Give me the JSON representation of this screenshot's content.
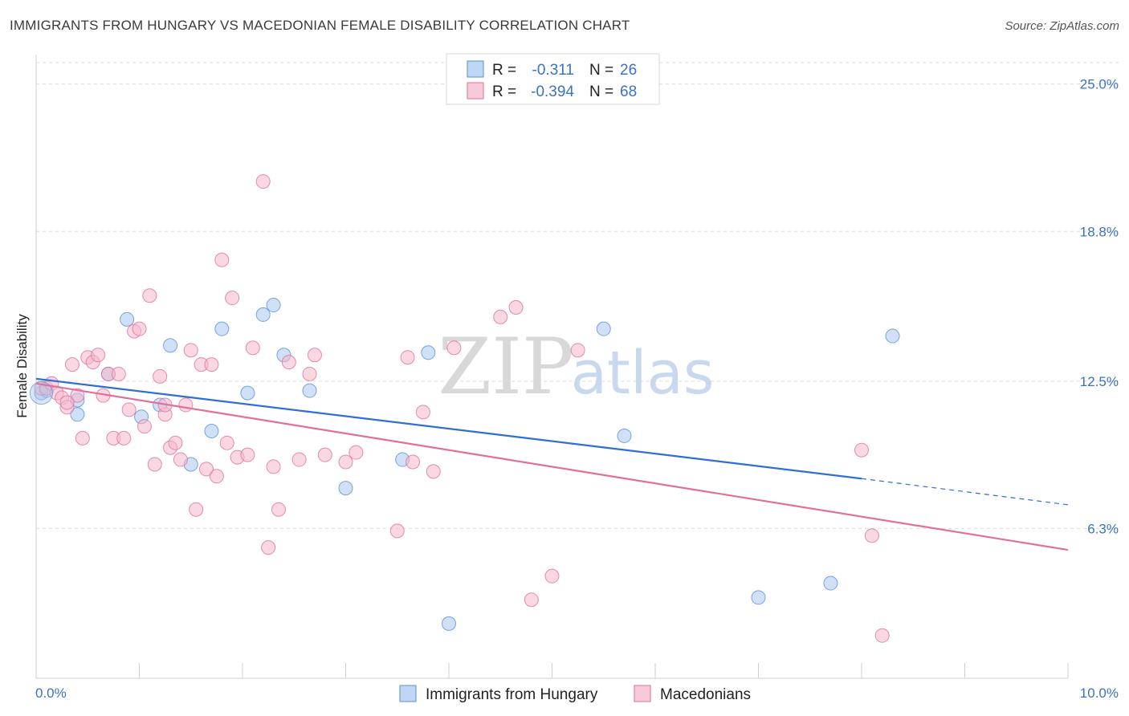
{
  "title": "IMMIGRANTS FROM HUNGARY VS MACEDONIAN FEMALE DISABILITY CORRELATION CHART",
  "source": "Source: ZipAtlas.com",
  "watermark": {
    "zip": "ZIP",
    "atlas": "atlas"
  },
  "chart_data": {
    "type": "scatter",
    "xlabel": "",
    "ylabel": "Female Disability",
    "xlim": [
      0,
      10
    ],
    "ylim": [
      0,
      25.9
    ],
    "x_tick_labels": [
      "0.0%",
      "10.0%"
    ],
    "y_ticks": [
      6.3,
      12.5,
      18.8,
      25.0
    ],
    "y_tick_labels": [
      "6.3%",
      "12.5%",
      "18.8%",
      "25.0%"
    ],
    "grid": true,
    "legend_position": "top-center",
    "bottom_legend": [
      "Immigrants from Hungary",
      "Macedonians"
    ],
    "series": [
      {
        "name": "Immigrants from Hungary",
        "color": "#5b8fd8",
        "fill": "#aac8f0",
        "R": "-0.311",
        "N": "26",
        "r_label": "R = ",
        "n_label": "N = ",
        "trend": {
          "x0": 0.0,
          "y0": 12.6,
          "x1": 8.0,
          "y1": 8.4,
          "dash_x1": 10.0,
          "dash_y1": 7.3
        },
        "points": [
          [
            0.05,
            12.0
          ],
          [
            0.1,
            12.1
          ],
          [
            0.4,
            11.1
          ],
          [
            0.4,
            11.7
          ],
          [
            0.7,
            12.8
          ],
          [
            0.88,
            15.1
          ],
          [
            1.02,
            11.0
          ],
          [
            1.2,
            11.5
          ],
          [
            1.3,
            14.0
          ],
          [
            1.5,
            9.0
          ],
          [
            1.7,
            10.4
          ],
          [
            1.8,
            14.7
          ],
          [
            2.05,
            12.0
          ],
          [
            2.2,
            15.3
          ],
          [
            2.3,
            15.7
          ],
          [
            2.4,
            13.6
          ],
          [
            2.65,
            12.1
          ],
          [
            3.0,
            8.0
          ],
          [
            3.55,
            9.2
          ],
          [
            3.8,
            13.7
          ],
          [
            4.0,
            2.3
          ],
          [
            5.5,
            14.7
          ],
          [
            5.7,
            10.2
          ],
          [
            7.0,
            3.4
          ],
          [
            7.7,
            4.0
          ],
          [
            8.3,
            14.4
          ]
        ]
      },
      {
        "name": "Macedonians",
        "color": "#e0709a",
        "fill": "#f5b8cc",
        "R": "-0.394",
        "N": "68",
        "r_label": "R = ",
        "n_label": "N = ",
        "trend": {
          "x0": 0.0,
          "y0": 12.4,
          "x1": 10.0,
          "y1": 5.4
        },
        "points": [
          [
            0.05,
            12.2
          ],
          [
            0.1,
            12.2
          ],
          [
            0.15,
            12.4
          ],
          [
            0.2,
            12.0
          ],
          [
            0.25,
            11.8
          ],
          [
            0.3,
            11.4
          ],
          [
            0.35,
            13.2
          ],
          [
            0.4,
            11.9
          ],
          [
            0.45,
            10.1
          ],
          [
            0.5,
            13.5
          ],
          [
            0.55,
            13.3
          ],
          [
            0.6,
            13.6
          ],
          [
            0.65,
            11.9
          ],
          [
            0.7,
            12.8
          ],
          [
            0.75,
            10.1
          ],
          [
            0.8,
            12.8
          ],
          [
            0.85,
            10.1
          ],
          [
            0.9,
            11.3
          ],
          [
            0.95,
            14.6
          ],
          [
            1.0,
            14.7
          ],
          [
            1.05,
            10.6
          ],
          [
            1.1,
            16.1
          ],
          [
            1.15,
            9.0
          ],
          [
            1.2,
            12.7
          ],
          [
            1.25,
            11.1
          ],
          [
            1.3,
            9.7
          ],
          [
            1.35,
            9.9
          ],
          [
            1.4,
            9.2
          ],
          [
            1.45,
            11.5
          ],
          [
            1.5,
            13.8
          ],
          [
            1.55,
            7.1
          ],
          [
            1.6,
            13.2
          ],
          [
            1.65,
            8.8
          ],
          [
            1.7,
            13.2
          ],
          [
            1.75,
            8.5
          ],
          [
            1.8,
            17.6
          ],
          [
            1.85,
            9.9
          ],
          [
            1.9,
            16.0
          ],
          [
            1.95,
            9.3
          ],
          [
            2.05,
            9.4
          ],
          [
            2.1,
            13.9
          ],
          [
            2.2,
            20.9
          ],
          [
            2.25,
            5.5
          ],
          [
            2.3,
            8.9
          ],
          [
            2.35,
            7.1
          ],
          [
            2.45,
            13.3
          ],
          [
            2.55,
            9.2
          ],
          [
            2.65,
            12.8
          ],
          [
            2.7,
            13.6
          ],
          [
            2.8,
            9.4
          ],
          [
            3.0,
            9.1
          ],
          [
            3.1,
            9.5
          ],
          [
            3.5,
            6.2
          ],
          [
            3.6,
            13.5
          ],
          [
            3.65,
            9.1
          ],
          [
            3.75,
            11.2
          ],
          [
            3.85,
            8.7
          ],
          [
            4.05,
            13.9
          ],
          [
            4.5,
            15.2
          ],
          [
            4.65,
            15.6
          ],
          [
            4.8,
            3.3
          ],
          [
            5.0,
            4.3
          ],
          [
            5.25,
            13.8
          ],
          [
            8.0,
            9.6
          ],
          [
            8.1,
            6.0
          ],
          [
            8.2,
            1.8
          ],
          [
            1.25,
            11.5
          ],
          [
            0.3,
            11.6
          ]
        ]
      }
    ]
  }
}
